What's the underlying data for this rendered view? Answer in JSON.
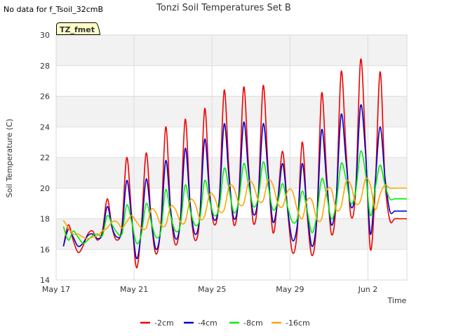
{
  "no_data_text": "No data for f_Tsoil_32cmB",
  "badge_text": "TZ_fmet",
  "chart_data": {
    "type": "line",
    "title": "Tonzi Soil Temperatures Set B",
    "xlabel": "Time",
    "ylabel": "Soil Temperature (C)",
    "ylim": [
      14,
      30
    ],
    "yticks": [
      14,
      16,
      18,
      20,
      22,
      24,
      26,
      28,
      30
    ],
    "xlim": [
      "2023-05-17",
      "2023-06-04"
    ],
    "xticks": [
      {
        "date": "2023-05-17",
        "label": "May 17"
      },
      {
        "date": "2023-05-21",
        "label": "May 21"
      },
      {
        "date": "2023-05-25",
        "label": "May 25"
      },
      {
        "date": "2023-05-29",
        "label": "May 29"
      },
      {
        "date": "2023-06-02",
        "label": "Jun 2"
      }
    ],
    "grid": true,
    "legend_position": "bottom",
    "x": [
      "2023-05-17 09:00",
      "2023-05-17 15:00",
      "2023-05-17 21:00",
      "2023-05-18 03:00",
      "2023-05-18 09:00",
      "2023-05-18 15:00",
      "2023-05-18 21:00",
      "2023-05-19 03:00",
      "2023-05-19 09:00",
      "2023-05-19 15:00",
      "2023-05-19 21:00",
      "2023-05-20 03:00",
      "2023-05-20 09:00",
      "2023-05-20 15:00",
      "2023-05-20 21:00",
      "2023-05-21 03:00",
      "2023-05-21 09:00",
      "2023-05-21 15:00",
      "2023-05-21 21:00",
      "2023-05-22 03:00",
      "2023-05-22 09:00",
      "2023-05-22 15:00",
      "2023-05-22 21:00",
      "2023-05-23 03:00",
      "2023-05-23 09:00",
      "2023-05-23 15:00",
      "2023-05-23 21:00",
      "2023-05-24 03:00",
      "2023-05-24 09:00",
      "2023-05-24 15:00",
      "2023-05-24 21:00",
      "2023-05-25 03:00",
      "2023-05-25 09:00",
      "2023-05-25 15:00",
      "2023-05-25 21:00",
      "2023-05-26 03:00",
      "2023-05-26 09:00",
      "2023-05-26 15:00",
      "2023-05-26 21:00",
      "2023-05-27 03:00",
      "2023-05-27 09:00",
      "2023-05-27 15:00",
      "2023-05-27 21:00",
      "2023-05-28 03:00",
      "2023-05-28 09:00",
      "2023-05-28 15:00",
      "2023-05-28 21:00",
      "2023-05-29 03:00",
      "2023-05-29 09:00",
      "2023-05-29 15:00",
      "2023-05-29 21:00",
      "2023-05-30 03:00",
      "2023-05-30 09:00",
      "2023-05-30 15:00",
      "2023-05-30 21:00",
      "2023-05-31 03:00",
      "2023-05-31 09:00",
      "2023-05-31 15:00",
      "2023-05-31 21:00",
      "2023-06-01 03:00",
      "2023-06-01 09:00",
      "2023-06-01 15:00",
      "2023-06-01 21:00",
      "2023-06-02 03:00",
      "2023-06-02 09:00",
      "2023-06-02 15:00",
      "2023-06-02 21:00",
      "2023-06-03 03:00",
      "2023-06-03 09:00",
      "2023-06-03 15:00",
      "2023-06-03 21:00",
      "2023-06-04 00:00"
    ],
    "series": [
      {
        "name": "-2cm",
        "color": "#ee0000",
        "values": [
          16.2,
          17.6,
          16.6,
          15.8,
          16.2,
          17.0,
          17.2,
          16.6,
          17.2,
          19.3,
          17.4,
          16.6,
          17.5,
          22.0,
          18.2,
          14.8,
          17.5,
          22.3,
          18.0,
          15.7,
          17.6,
          24.0,
          18.6,
          16.3,
          18.0,
          24.5,
          19.0,
          16.6,
          18.2,
          25.2,
          19.8,
          17.6,
          19.4,
          26.4,
          21.0,
          17.6,
          19.6,
          26.6,
          21.4,
          17.7,
          19.6,
          26.7,
          21.3,
          17.1,
          19.3,
          22.4,
          18.6,
          15.8,
          17.2,
          23.0,
          18.4,
          15.6,
          17.9,
          26.2,
          21.0,
          17.0,
          19.2,
          27.6,
          22.5,
          18.2,
          19.9,
          28.4,
          22.8,
          16.0,
          20.0,
          27.6,
          20.5,
          17.9,
          18.0,
          18.0,
          18.0,
          18.0
        ]
      },
      {
        "name": "-4cm",
        "color": "#0000cc",
        "values": [
          16.2,
          17.3,
          16.8,
          16.2,
          16.4,
          16.9,
          17.0,
          16.7,
          17.0,
          18.8,
          17.4,
          16.8,
          17.2,
          20.5,
          18.0,
          15.4,
          17.2,
          20.6,
          18.0,
          16.0,
          17.4,
          21.8,
          18.6,
          16.7,
          17.8,
          22.6,
          19.0,
          17.0,
          18.2,
          23.2,
          19.6,
          17.9,
          19.2,
          24.2,
          20.6,
          18.0,
          19.4,
          24.3,
          21.0,
          18.3,
          19.5,
          24.2,
          21.0,
          17.8,
          19.2,
          21.6,
          18.7,
          16.6,
          17.6,
          21.6,
          18.6,
          16.2,
          18.0,
          23.8,
          20.5,
          17.6,
          19.4,
          24.8,
          21.8,
          18.8,
          20.0,
          25.4,
          22.3,
          17.0,
          20.4,
          24.0,
          20.7,
          18.5,
          18.5,
          18.5,
          18.5,
          18.5
        ]
      },
      {
        "name": "-8cm",
        "color": "#00ee00",
        "values": [
          17.5,
          16.6,
          17.2,
          16.8,
          16.4,
          16.6,
          16.9,
          17.0,
          16.9,
          18.2,
          17.6,
          17.1,
          17.0,
          18.9,
          17.8,
          16.4,
          17.0,
          19.0,
          17.8,
          16.8,
          17.2,
          19.9,
          18.2,
          17.2,
          17.6,
          20.2,
          18.6,
          17.6,
          18.0,
          20.5,
          19.2,
          18.2,
          18.8,
          21.3,
          19.9,
          18.4,
          19.2,
          21.6,
          20.2,
          18.8,
          19.4,
          21.7,
          20.2,
          18.6,
          19.1,
          20.3,
          18.8,
          17.8,
          18.0,
          19.8,
          18.6,
          17.1,
          18.2,
          20.6,
          19.6,
          18.0,
          19.0,
          21.6,
          20.6,
          19.0,
          19.8,
          22.4,
          21.0,
          18.2,
          20.0,
          21.5,
          20.2,
          19.3,
          19.3,
          19.3,
          19.3,
          19.3
        ]
      },
      {
        "name": "-16cm",
        "color": "#ffa500",
        "values": [
          17.9,
          17.4,
          17.0,
          17.0,
          16.8,
          16.7,
          16.8,
          16.9,
          17.2,
          17.4,
          17.8,
          17.8,
          17.4,
          17.8,
          18.2,
          17.8,
          17.4,
          17.4,
          18.6,
          18.4,
          17.6,
          17.6,
          18.8,
          18.6,
          17.8,
          17.8,
          19.2,
          19.0,
          18.0,
          18.2,
          19.6,
          19.4,
          18.5,
          18.6,
          20.1,
          20.0,
          19.0,
          19.0,
          20.4,
          20.2,
          19.2,
          19.2,
          20.5,
          20.2,
          19.0,
          18.8,
          19.8,
          19.8,
          18.6,
          18.0,
          19.2,
          19.2,
          18.0,
          18.0,
          19.8,
          19.9,
          18.6,
          18.8,
          20.4,
          20.2,
          19.0,
          19.2,
          20.6,
          20.2,
          18.6,
          19.6,
          20.2,
          20.0,
          20.0,
          20.0,
          20.0,
          20.0
        ]
      }
    ]
  }
}
